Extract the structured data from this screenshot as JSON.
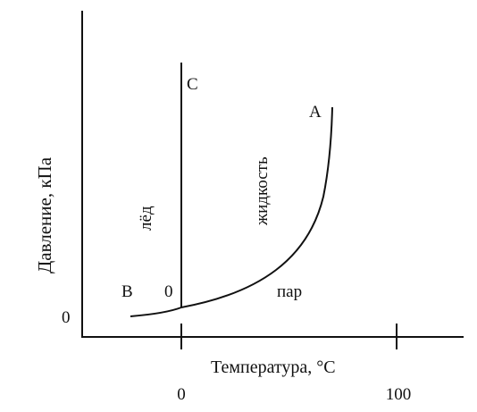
{
  "diagram": {
    "y_axis_label": "Давление, кПа",
    "x_axis_label": "Температура, °С",
    "y_origin_label": "0",
    "x_tick_labels": [
      "0",
      "100"
    ],
    "regions": {
      "ice": "лёд",
      "liquid": "жидкость",
      "vapor": "пар"
    },
    "points": {
      "A": "A",
      "B": "B",
      "C": "C",
      "O": "0"
    }
  }
}
